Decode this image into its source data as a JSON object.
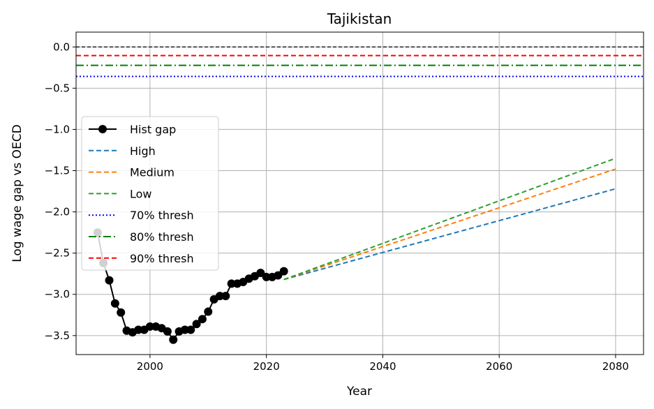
{
  "chart_data": {
    "type": "line",
    "title": "Tajikistan",
    "xlabel": "Year",
    "ylabel": "Log wage gap vs OECD",
    "xlim": [
      1987.3,
      2084.8
    ],
    "ylim": [
      -3.73,
      0.18
    ],
    "xticks": [
      2000,
      2020,
      2040,
      2060,
      2080
    ],
    "yticks": [
      0.0,
      -0.5,
      -1.0,
      -1.5,
      -2.0,
      -2.5,
      -3.0,
      -3.5
    ],
    "xtick_labels": [
      "2000",
      "2020",
      "2040",
      "2060",
      "2080"
    ],
    "ytick_labels": [
      "0.0",
      "−0.5",
      "−1.0",
      "−1.5",
      "−2.0",
      "−2.5",
      "−3.0",
      "−3.5"
    ],
    "grid": true,
    "legend_position": "center-left",
    "zero_line": {
      "y": 0.0,
      "color": "#000000",
      "style": "dashed"
    },
    "thresholds": [
      {
        "name": "70% thresh",
        "y": -0.357,
        "color": "#0000ff",
        "style": "dotted"
      },
      {
        "name": "80% thresh",
        "y": -0.223,
        "color": "#008000",
        "style": "dashdot"
      },
      {
        "name": "90% thresh",
        "y": -0.105,
        "color": "#ff0000",
        "style": "dashed"
      }
    ],
    "hist": {
      "name": "Hist gap",
      "color": "#000000",
      "x": [
        1991,
        1992,
        1993,
        1994,
        1995,
        1996,
        1997,
        1998,
        1999,
        2000,
        2001,
        2002,
        2003,
        2004,
        2005,
        2006,
        2007,
        2008,
        2009,
        2010,
        2011,
        2012,
        2013,
        2014,
        2015,
        2016,
        2017,
        2018,
        2019,
        2020,
        2021,
        2022,
        2023
      ],
      "y": [
        -2.25,
        -2.62,
        -2.83,
        -3.11,
        -3.22,
        -3.44,
        -3.46,
        -3.43,
        -3.43,
        -3.39,
        -3.39,
        -3.41,
        -3.45,
        -3.55,
        -3.45,
        -3.43,
        -3.43,
        -3.36,
        -3.3,
        -3.21,
        -3.06,
        -3.02,
        -3.02,
        -2.87,
        -2.87,
        -2.85,
        -2.81,
        -2.78,
        -2.74,
        -2.79,
        -2.79,
        -2.77,
        -2.72
      ]
    },
    "projections": [
      {
        "name": "High",
        "color": "#1f77b4",
        "style": "dashed",
        "x": [
          2023,
          2080
        ],
        "y": [
          -2.82,
          -1.72
        ]
      },
      {
        "name": "Medium",
        "color": "#ff7f0e",
        "style": "dashed",
        "x": [
          2023,
          2080
        ],
        "y": [
          -2.82,
          -1.48
        ]
      },
      {
        "name": "Low",
        "color": "#2ca02c",
        "style": "dashed",
        "x": [
          2023,
          2080
        ],
        "y": [
          -2.82,
          -1.35
        ]
      }
    ],
    "legend": [
      {
        "label": "Hist gap",
        "color": "#000000",
        "style": "marker-line"
      },
      {
        "label": "High",
        "color": "#1f77b4",
        "style": "dashed"
      },
      {
        "label": "Medium",
        "color": "#ff7f0e",
        "style": "dashed"
      },
      {
        "label": "Low",
        "color": "#2ca02c",
        "style": "dashed"
      },
      {
        "label": "70% thresh",
        "color": "#0000ff",
        "style": "dotted"
      },
      {
        "label": "80% thresh",
        "color": "#008000",
        "style": "dashdot"
      },
      {
        "label": "90% thresh",
        "color": "#ff0000",
        "style": "dashed"
      }
    ]
  }
}
